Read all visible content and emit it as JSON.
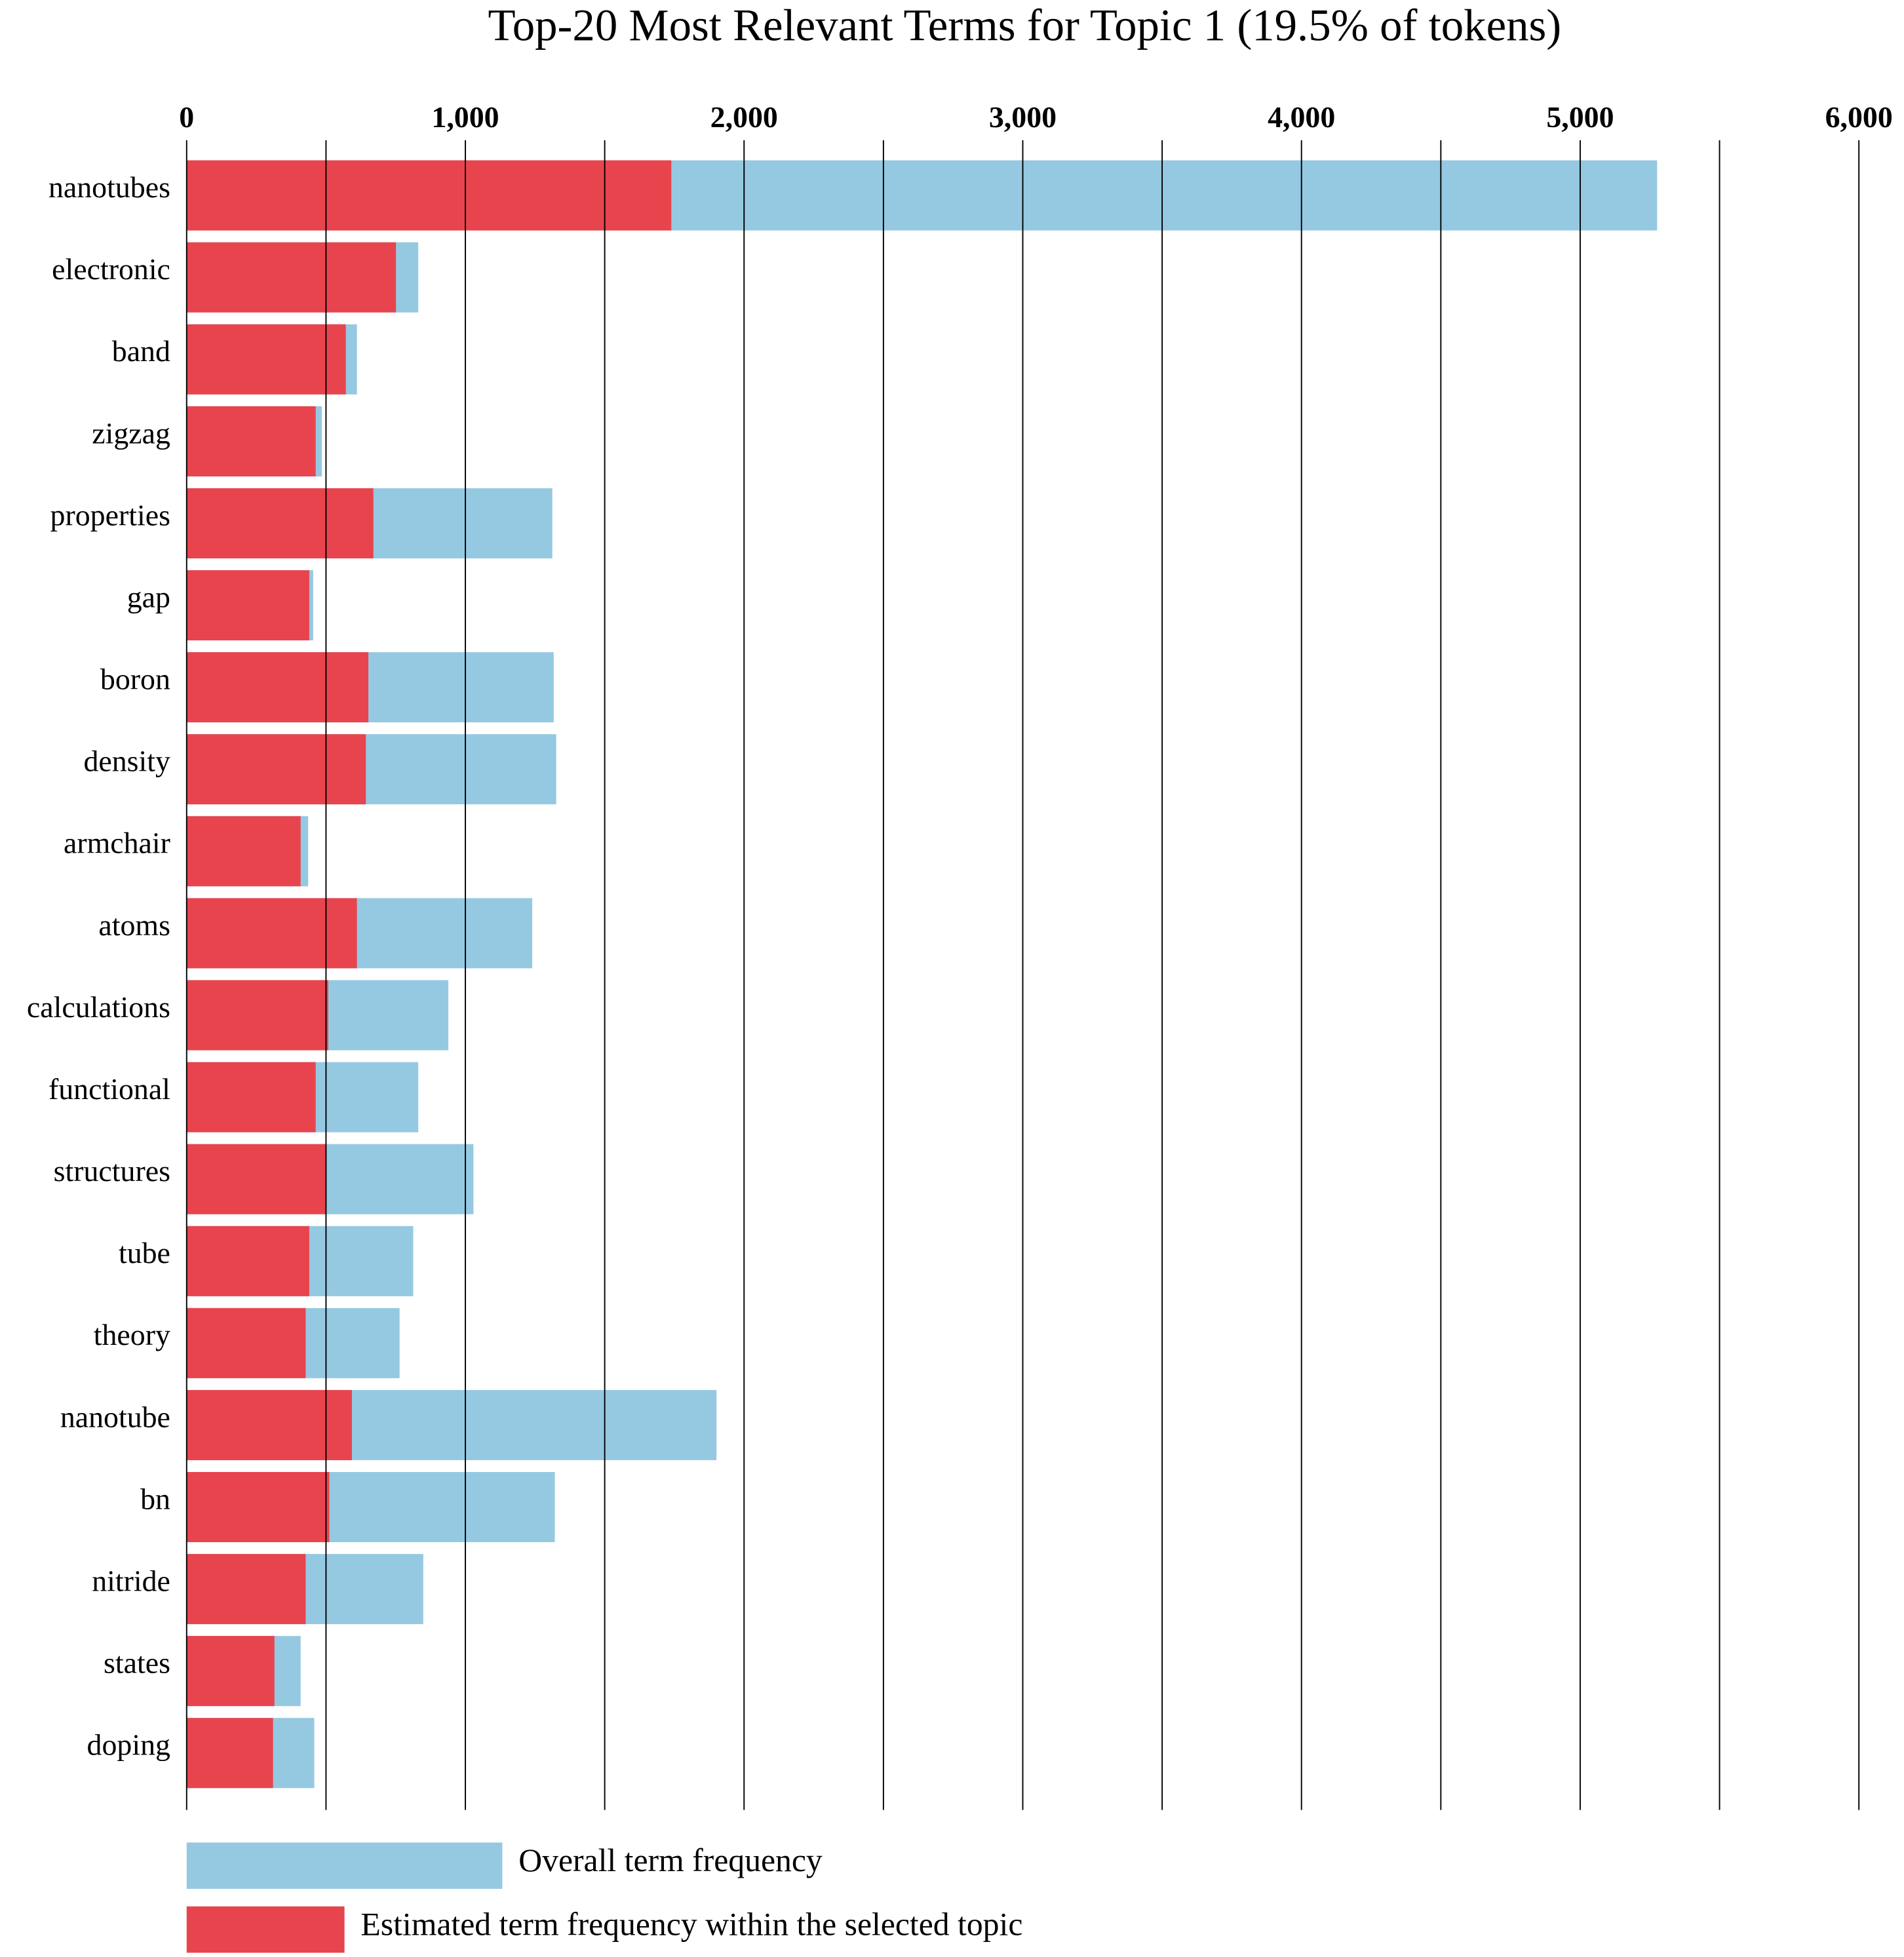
{
  "chart_data": {
    "type": "bar_overlay",
    "orientation": "horizontal",
    "title": "Top-20 Most Relevant Terms for Topic 1 (19.5% of tokens)",
    "categories": [
      "nanotubes",
      "electronic",
      "band",
      "zigzag",
      "properties",
      "gap",
      "boron",
      "density",
      "armchair",
      "atoms",
      "calculations",
      "functional",
      "structures",
      "tube",
      "theory",
      "nanotube",
      "bn",
      "nitride",
      "states",
      "doping"
    ],
    "series": [
      {
        "name": "Overall term frequency",
        "color": "#95c9e1",
        "values": [
          5276,
          831,
          611,
          485,
          1312,
          454,
          1317,
          1326,
          436,
          1240,
          939,
          831,
          1029,
          813,
          764,
          1901,
          1321,
          849,
          409,
          458
        ]
      },
      {
        "name": "Estimated term frequency within the selected topic",
        "color": "#e8444e",
        "values": [
          1739,
          751,
          571,
          463,
          670,
          440,
          652,
          643,
          409,
          611,
          508,
          463,
          499,
          440,
          427,
          593,
          512,
          427,
          315,
          310
        ]
      }
    ],
    "xlim": [
      0,
      6000
    ],
    "xticks": [
      0,
      {
        "value": 1000,
        "label": "1,000"
      },
      {
        "value": 2000,
        "label": "2,000"
      },
      {
        "value": 3000,
        "label": "3,000"
      },
      {
        "value": 4000,
        "label": "4,000"
      },
      {
        "value": 5000,
        "label": "5,000"
      },
      {
        "value": 6000,
        "label": "6,000"
      }
    ],
    "minor_xticks": [
      500,
      1500,
      2500,
      3500,
      4500,
      5500
    ],
    "grid": true,
    "legend": "bottom"
  }
}
